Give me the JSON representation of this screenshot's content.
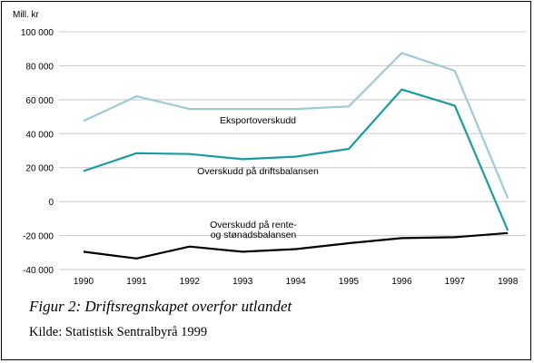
{
  "chart_data": {
    "type": "line",
    "unit_label": "Mill. kr",
    "x": [
      1990,
      1991,
      1992,
      1993,
      1994,
      1995,
      1996,
      1997,
      1998
    ],
    "x_tick_labels": [
      "1990",
      "1991",
      "1992",
      "1993",
      "1994",
      "1995",
      "1996",
      "1997",
      "1998"
    ],
    "ylim": [
      -40000,
      100000
    ],
    "y_ticks": [
      -40000,
      -20000,
      0,
      20000,
      40000,
      60000,
      80000,
      100000
    ],
    "y_tick_labels": [
      "-40 000",
      "-20 000",
      "0",
      "20 000",
      "40 000",
      "60 000",
      "80 000",
      "100 000"
    ],
    "grid": "horizontal",
    "series": [
      {
        "name": "Eksportoverskudd",
        "color": "#9fcbd0",
        "values": [
          47500,
          62000,
          54500,
          54500,
          54500,
          56000,
          87500,
          77000,
          2000
        ]
      },
      {
        "name": "Overskudd på driftsbalansen",
        "color": "#1a9ba0",
        "values": [
          18000,
          28500,
          28000,
          25000,
          26500,
          31000,
          66000,
          56500,
          -17000
        ]
      },
      {
        "name": "Overskudd på rente- og stønadsbalansen",
        "name_lines": [
          "Overskudd på rente-",
          "og stønadsbalansen"
        ],
        "color": "#000000",
        "values": [
          -29500,
          -33500,
          -26500,
          -29500,
          -28000,
          -24500,
          -21500,
          -21000,
          -18500
        ]
      }
    ]
  },
  "caption": {
    "figure_label": "Figur 2: Driftsregnskapet overfor utlandet",
    "source": "Kilde: Statistisk Sentralbyrå 1999"
  }
}
